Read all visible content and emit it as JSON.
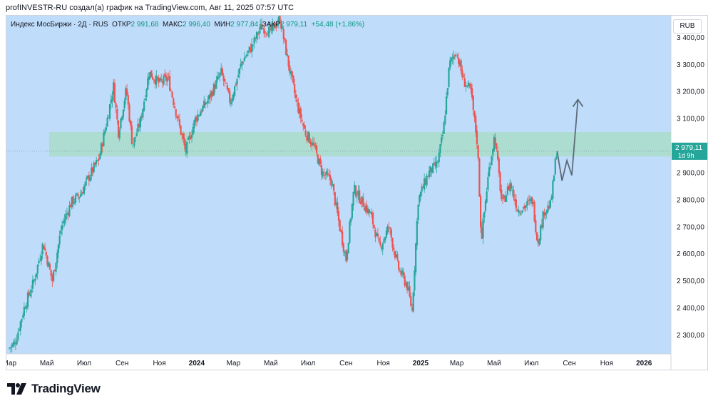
{
  "caption": "profINVESTR-RU создал(а) график на TradingView.com, Авг 11, 2025 07:57 UTC",
  "legend": {
    "symbol": "Индекс МосБиржи · 2Д · RUS",
    "open_label": "ОТКР",
    "open_value": "2 991,68",
    "high_label": "МАКС",
    "high_value": "2 996,40",
    "low_label": "МИН",
    "low_value": "2 977,84",
    "close_label": "ЗАКР",
    "close_value": "2 979,11",
    "change": "+54,48 (+1,86%)"
  },
  "currency_button": "RUB",
  "price_tag": {
    "price": "2 979,11",
    "countdown": "1d 9h"
  },
  "brand": "TradingView",
  "colors": {
    "background": "#bfdcfa",
    "zone": "#a9dcc9",
    "up": "#26a69a",
    "down": "#ef5350",
    "arrow": "#5d6b78",
    "price_tag": "#26a69a"
  },
  "chart_data": {
    "type": "candlestick",
    "y_ticks": [
      "2 300,00",
      "2 400,00",
      "2 500,00",
      "2 600,00",
      "2 700,00",
      "2 800,00",
      "2 900,00",
      "3 000,00",
      "3 100,00",
      "3 200,00",
      "3 300,00",
      "3 400,00"
    ],
    "y_tick_values": [
      2300,
      2400,
      2500,
      2600,
      2700,
      2800,
      2900,
      3000,
      3100,
      3200,
      3300,
      3400
    ],
    "ylim": [
      2230,
      3480
    ],
    "x_ticks": [
      "Мар",
      "Май",
      "Июл",
      "Сен",
      "Ноя",
      "2024",
      "Мар",
      "Май",
      "Июл",
      "Сен",
      "Ноя",
      "2025",
      "Мар",
      "Май",
      "Июл",
      "Сен",
      "Ноя",
      "2026"
    ],
    "x_tick_values": [
      "2023-03",
      "2023-05",
      "2023-07",
      "2023-09",
      "2023-11",
      "2024-01",
      "2024-03",
      "2024-05",
      "2024-07",
      "2024-09",
      "2024-11",
      "2025-01",
      "2025-03",
      "2025-05",
      "2025-07",
      "2025-09",
      "2025-11",
      "2026-01"
    ],
    "support_zone": [
      2960,
      3050
    ],
    "last_price": 2979.11,
    "forecast_path": [
      {
        "x": "2025-08-12",
        "y": 2979
      },
      {
        "x": "2025-08-20",
        "y": 2870
      },
      {
        "x": "2025-08-28",
        "y": 2945
      },
      {
        "x": "2025-09-05",
        "y": 2890
      },
      {
        "x": "2025-09-15",
        "y": 3170
      }
    ],
    "price_path": [
      {
        "x": "2023-02-27",
        "y": 2250
      },
      {
        "x": "2023-03-10",
        "y": 2270
      },
      {
        "x": "2023-03-25",
        "y": 2400
      },
      {
        "x": "2023-04-10",
        "y": 2500
      },
      {
        "x": "2023-04-25",
        "y": 2640
      },
      {
        "x": "2023-05-10",
        "y": 2500
      },
      {
        "x": "2023-05-25",
        "y": 2700
      },
      {
        "x": "2023-06-10",
        "y": 2790
      },
      {
        "x": "2023-06-25",
        "y": 2820
      },
      {
        "x": "2023-07-10",
        "y": 2890
      },
      {
        "x": "2023-07-25",
        "y": 2950
      },
      {
        "x": "2023-08-08",
        "y": 3100
      },
      {
        "x": "2023-08-18",
        "y": 3220
      },
      {
        "x": "2023-08-26",
        "y": 3050
      },
      {
        "x": "2023-09-08",
        "y": 3210
      },
      {
        "x": "2023-09-18",
        "y": 3000
      },
      {
        "x": "2023-10-01",
        "y": 3090
      },
      {
        "x": "2023-10-15",
        "y": 3270
      },
      {
        "x": "2023-11-01",
        "y": 3230
      },
      {
        "x": "2023-11-15",
        "y": 3250
      },
      {
        "x": "2023-12-05",
        "y": 3060
      },
      {
        "x": "2023-12-14",
        "y": 2980
      },
      {
        "x": "2023-12-30",
        "y": 3100
      },
      {
        "x": "2024-01-20",
        "y": 3170
      },
      {
        "x": "2024-02-10",
        "y": 3270
      },
      {
        "x": "2024-02-25",
        "y": 3160
      },
      {
        "x": "2024-03-15",
        "y": 3310
      },
      {
        "x": "2024-04-01",
        "y": 3370
      },
      {
        "x": "2024-04-15",
        "y": 3440
      },
      {
        "x": "2024-05-01",
        "y": 3420
      },
      {
        "x": "2024-05-16",
        "y": 3470
      },
      {
        "x": "2024-05-30",
        "y": 3300
      },
      {
        "x": "2024-06-12",
        "y": 3160
      },
      {
        "x": "2024-06-26",
        "y": 3050
      },
      {
        "x": "2024-07-10",
        "y": 3000
      },
      {
        "x": "2024-07-24",
        "y": 2900
      },
      {
        "x": "2024-08-08",
        "y": 2870
      },
      {
        "x": "2024-08-20",
        "y": 2720
      },
      {
        "x": "2024-09-01",
        "y": 2580
      },
      {
        "x": "2024-09-14",
        "y": 2840
      },
      {
        "x": "2024-09-28",
        "y": 2790
      },
      {
        "x": "2024-10-12",
        "y": 2740
      },
      {
        "x": "2024-10-26",
        "y": 2620
      },
      {
        "x": "2024-11-10",
        "y": 2700
      },
      {
        "x": "2024-11-25",
        "y": 2550
      },
      {
        "x": "2024-12-10",
        "y": 2480
      },
      {
        "x": "2024-12-18",
        "y": 2390
      },
      {
        "x": "2024-12-28",
        "y": 2800
      },
      {
        "x": "2025-01-14",
        "y": 2900
      },
      {
        "x": "2025-01-28",
        "y": 2930
      },
      {
        "x": "2025-02-07",
        "y": 3050
      },
      {
        "x": "2025-02-17",
        "y": 3300
      },
      {
        "x": "2025-02-28",
        "y": 3350
      },
      {
        "x": "2025-03-12",
        "y": 3240
      },
      {
        "x": "2025-03-24",
        "y": 3200
      },
      {
        "x": "2025-04-04",
        "y": 3000
      },
      {
        "x": "2025-04-10",
        "y": 2650
      },
      {
        "x": "2025-04-22",
        "y": 2900
      },
      {
        "x": "2025-05-02",
        "y": 3040
      },
      {
        "x": "2025-05-14",
        "y": 2780
      },
      {
        "x": "2025-05-27",
        "y": 2860
      },
      {
        "x": "2025-06-09",
        "y": 2760
      },
      {
        "x": "2025-06-23",
        "y": 2780
      },
      {
        "x": "2025-07-03",
        "y": 2800
      },
      {
        "x": "2025-07-11",
        "y": 2640
      },
      {
        "x": "2025-07-22",
        "y": 2760
      },
      {
        "x": "2025-08-01",
        "y": 2780
      },
      {
        "x": "2025-08-05",
        "y": 2850
      },
      {
        "x": "2025-08-11",
        "y": 2979
      }
    ]
  }
}
